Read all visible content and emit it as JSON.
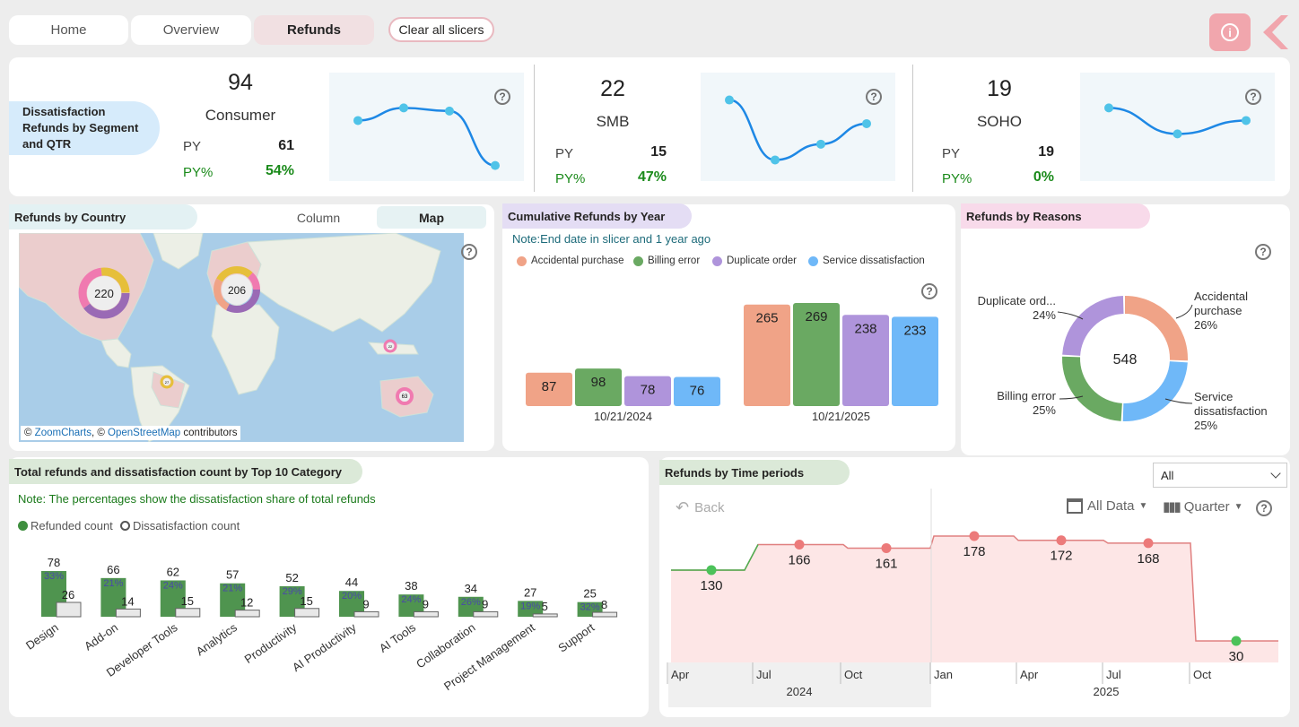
{
  "nav": {
    "tabs": [
      "Home",
      "Overview",
      "Refunds"
    ],
    "clear_label": "Clear all slicers"
  },
  "kpi": {
    "title": "Dissatisfaction Refunds by Segment and QTR",
    "py_label": "PY",
    "pyp_label": "PY%",
    "segments": [
      {
        "value": "94",
        "name": "Consumer",
        "py": "61",
        "pyp": "54%",
        "trend": [
          0.62,
          0.78,
          0.74,
          0.05
        ]
      },
      {
        "value": "22",
        "name": "SMB",
        "py": "15",
        "pyp": "47%",
        "trend": [
          0.88,
          0.12,
          0.32,
          0.58
        ]
      },
      {
        "value": "19",
        "name": "SOHO",
        "py": "19",
        "pyp": "0%",
        "trend": [
          0.78,
          0.45,
          0.62
        ]
      }
    ]
  },
  "country": {
    "title": "Refunds by Country",
    "toggle": [
      "Column",
      "Map"
    ],
    "markers": [
      "220",
      "206",
      "22",
      "27",
      "63"
    ],
    "attribution": {
      "prefix": "© ",
      "zc": "ZoomCharts",
      "sep": ", © ",
      "osm": "OpenStreetMap",
      "suffix": " contributors"
    }
  },
  "cumulative": {
    "title": "Cumulative Refunds by Year",
    "note": "Note:End date in slicer and 1 year ago",
    "chart_data": {
      "type": "bar",
      "categories": [
        "10/21/2024",
        "10/21/2025"
      ],
      "series": [
        {
          "name": "Accidental purchase",
          "values": [
            87,
            265
          ],
          "color": "#f0a387"
        },
        {
          "name": "Billing error",
          "values": [
            98,
            269
          ],
          "color": "#6aa962"
        },
        {
          "name": "Duplicate order",
          "values": [
            78,
            238
          ],
          "color": "#af94db"
        },
        {
          "name": "Service dissatisfaction",
          "values": [
            76,
            233
          ],
          "color": "#6fb8f8"
        }
      ]
    }
  },
  "reasons": {
    "title": "Refunds by Reasons",
    "chart_data": {
      "type": "pie",
      "total": "548",
      "slices": [
        {
          "name": "Accidental purchase",
          "label_lines": [
            "Accidental",
            "purchase"
          ],
          "pct": "26%",
          "value": 26,
          "color": "#f0a387"
        },
        {
          "name": "Service dissatisfaction",
          "label_lines": [
            "Service",
            "dissatisfaction"
          ],
          "pct": "25%",
          "value": 25,
          "color": "#6fb8f8"
        },
        {
          "name": "Billing error",
          "label_lines": [
            "Billing error"
          ],
          "pct": "25%",
          "value": 25,
          "color": "#6aa962"
        },
        {
          "name": "Duplicate ord...",
          "label_lines": [
            "Duplicate ord..."
          ],
          "pct": "24%",
          "value": 24,
          "color": "#af94db"
        }
      ]
    }
  },
  "category": {
    "title": "Total refunds and dissatisfaction count by Top 10 Category",
    "note": "Note: The percentages show the dissatisfaction share of total refunds",
    "legend": [
      "Refunded count",
      "Dissatisfaction count"
    ],
    "chart_data": {
      "type": "bar",
      "categories": [
        "Design",
        "Add-on",
        "Developer Tools",
        "Analytics",
        "Productivity",
        "AI Productivity",
        "AI Tools",
        "Collaboration",
        "Project Management",
        "Support"
      ],
      "series": [
        {
          "name": "Refunded count",
          "values": [
            78,
            66,
            62,
            57,
            52,
            44,
            38,
            34,
            27,
            25
          ]
        },
        {
          "name": "Dissatisfaction count",
          "values": [
            26,
            14,
            15,
            12,
            15,
            9,
            9,
            9,
            5,
            8
          ]
        }
      ],
      "pct": [
        "33%",
        "21%",
        "24%",
        "21%",
        "29%",
        "20%",
        "24%",
        "26%",
        "19%",
        "32%"
      ]
    }
  },
  "time": {
    "title": "Refunds by Time periods",
    "dropdown": "All",
    "back": "Back",
    "all_data": "All Data",
    "quarter": "Quarter",
    "chart_data": {
      "type": "area",
      "labels": [
        {
          "value": 130,
          "color": "#4cc25a"
        },
        {
          "value": 166,
          "color": "#ec7a7a"
        },
        {
          "value": 161,
          "color": "#ec7a7a"
        },
        {
          "value": 178,
          "color": "#ec7a7a"
        },
        {
          "value": 172,
          "color": "#ec7a7a"
        },
        {
          "value": 168,
          "color": "#ec7a7a"
        },
        {
          "value": 30,
          "color": "#4cc25a"
        }
      ],
      "months": [
        "Apr",
        "Jul",
        "Oct",
        "Jan",
        "Apr",
        "Jul",
        "Oct"
      ],
      "years": [
        "2024",
        "2025"
      ]
    }
  }
}
